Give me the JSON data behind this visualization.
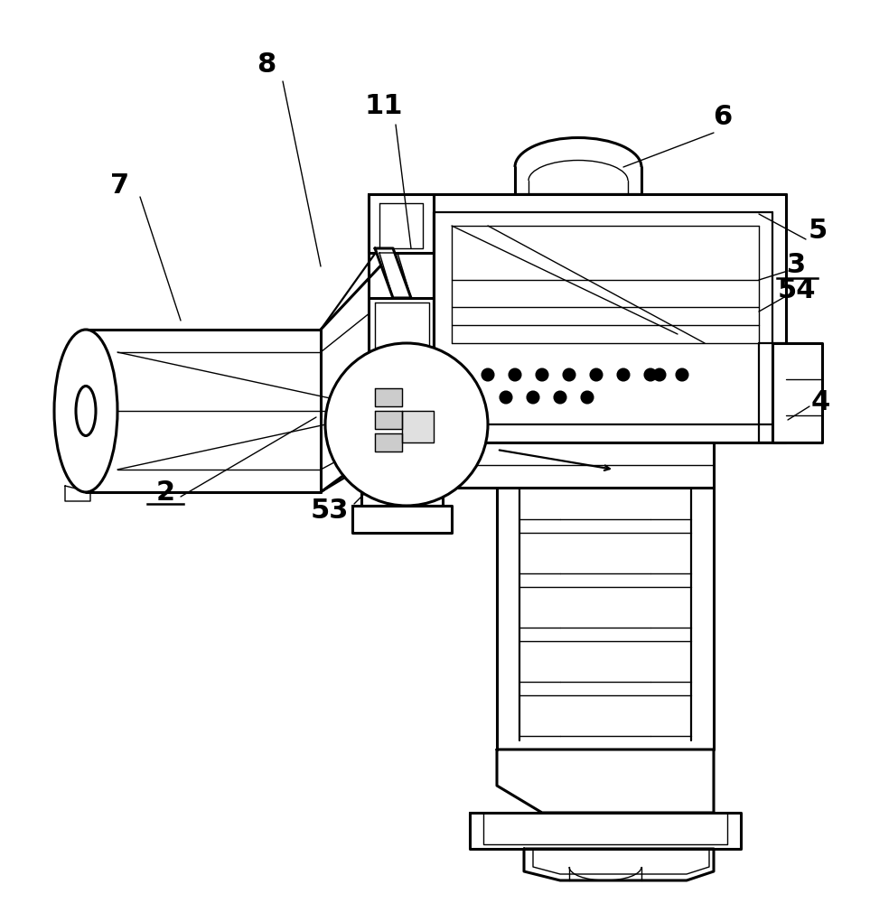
{
  "background_color": "#ffffff",
  "line_color": "#000000",
  "fig_width": 9.63,
  "fig_height": 10.0,
  "dpi": 100,
  "lw_main": 2.2,
  "lw_med": 1.6,
  "lw_thin": 1.0,
  "label_fontsize": 22,
  "label_fontsize_small": 20
}
